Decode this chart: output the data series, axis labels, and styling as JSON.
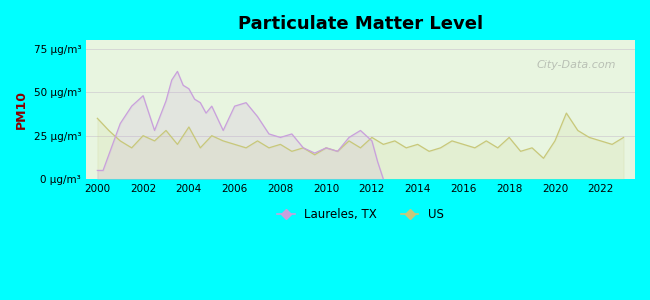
{
  "title": "Particulate Matter Level",
  "ylabel": "PM10",
  "background_color": "#00FFFF",
  "laureles_color": "#c9a0dc",
  "us_color": "#c8c87a",
  "ylim": [
    0,
    80
  ],
  "yticks": [
    0,
    25,
    50,
    75
  ],
  "ytick_labels": [
    "0 μg/m³",
    "25 μg/m³",
    "50 μg/m³",
    "75 μg/m³"
  ],
  "xmin": 1999.5,
  "xmax": 2023.5,
  "xticks": [
    2000,
    2002,
    2004,
    2006,
    2008,
    2010,
    2012,
    2014,
    2016,
    2018,
    2020,
    2022
  ],
  "watermark": "City-Data.com",
  "laureles_x": [
    2000.0,
    2000.25,
    2001.0,
    2001.5,
    2002.0,
    2002.5,
    2003.0,
    2003.25,
    2003.5,
    2003.75,
    2004.0,
    2004.25,
    2004.5,
    2004.75,
    2005.0,
    2005.5,
    2006.0,
    2006.5,
    2007.0,
    2007.5,
    2008.0,
    2008.5,
    2009.0,
    2009.5,
    2010.0,
    2010.5,
    2011.0,
    2011.5,
    2012.0,
    2012.25,
    2012.5
  ],
  "laureles_y": [
    5,
    5,
    32,
    42,
    48,
    28,
    45,
    57,
    62,
    54,
    52,
    46,
    44,
    38,
    42,
    28,
    42,
    44,
    36,
    26,
    24,
    26,
    18,
    15,
    18,
    16,
    24,
    28,
    22,
    10,
    0
  ],
  "us_x": [
    2000.0,
    2000.5,
    2001.0,
    2001.5,
    2002.0,
    2002.5,
    2003.0,
    2003.5,
    2004.0,
    2004.5,
    2005.0,
    2005.5,
    2006.0,
    2006.5,
    2007.0,
    2007.5,
    2008.0,
    2008.5,
    2009.0,
    2009.5,
    2010.0,
    2010.5,
    2011.0,
    2011.5,
    2012.0,
    2012.5,
    2013.0,
    2013.5,
    2014.0,
    2014.5,
    2015.0,
    2015.5,
    2016.0,
    2016.5,
    2017.0,
    2017.5,
    2018.0,
    2018.5,
    2019.0,
    2019.5,
    2020.0,
    2020.5,
    2021.0,
    2021.5,
    2022.0,
    2022.5,
    2023.0
  ],
  "us_y": [
    35,
    28,
    22,
    18,
    25,
    22,
    28,
    20,
    30,
    18,
    25,
    22,
    20,
    18,
    22,
    18,
    20,
    16,
    18,
    14,
    18,
    16,
    22,
    18,
    24,
    20,
    22,
    18,
    20,
    16,
    18,
    22,
    20,
    18,
    22,
    18,
    24,
    16,
    18,
    12,
    22,
    38,
    28,
    24,
    22,
    20,
    24
  ]
}
